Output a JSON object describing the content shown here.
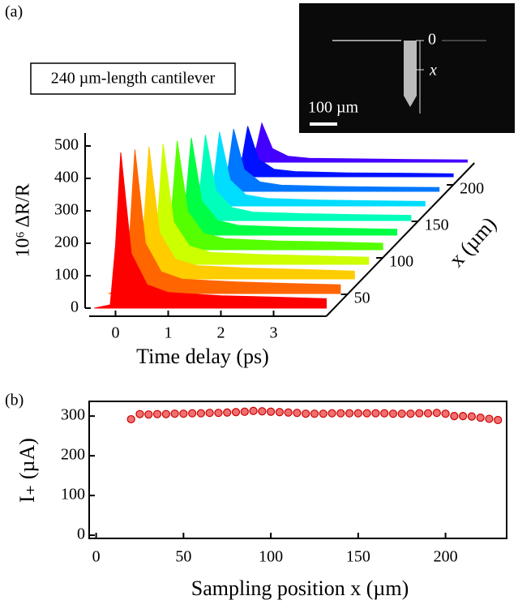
{
  "chart_data": [
    {
      "type": "waterfall",
      "panel_label": "(a)",
      "annotation": "240 µm-length cantilever",
      "inset_labels": [
        "0",
        "x",
        "100 µm"
      ],
      "xlabel": "Time delay (ps)",
      "ylabel": "10⁶ ΔR/R",
      "zlabel": "x (µm)",
      "x": [
        -0.4,
        -0.1,
        0,
        0.1,
        0.3,
        0.6,
        1,
        2,
        3,
        4
      ],
      "xlim": [
        -0.5,
        4
      ],
      "xticks": [
        0,
        1,
        2,
        3
      ],
      "ylim": [
        0,
        540
      ],
      "yticks": [
        0,
        100,
        200,
        300,
        400,
        500
      ],
      "z": [
        20,
        40,
        60,
        80,
        100,
        120,
        140,
        160,
        180,
        200,
        220
      ],
      "zlim": [
        20,
        230
      ],
      "zticks": [
        50,
        100,
        150,
        200
      ],
      "series": [
        {
          "color": "#ff0000",
          "values": [
            0,
            10,
            192,
            480,
            168,
            72,
            48,
            38,
            34,
            29
          ]
        },
        {
          "color": "#ff6600",
          "values": [
            0,
            9,
            178,
            444,
            155,
            67,
            44,
            36,
            31,
            27
          ]
        },
        {
          "color": "#ffcc00",
          "values": [
            0,
            8,
            163,
            408,
            143,
            61,
            41,
            33,
            29,
            24
          ]
        },
        {
          "color": "#ccff00",
          "values": [
            0,
            7,
            149,
            372,
            130,
            56,
            37,
            30,
            26,
            22
          ]
        },
        {
          "color": "#55ff00",
          "values": [
            0,
            7,
            134,
            336,
            118,
            50,
            34,
            27,
            24,
            20
          ]
        },
        {
          "color": "#00ff44",
          "values": [
            0,
            6,
            120,
            300,
            105,
            45,
            30,
            24,
            21,
            18
          ]
        },
        {
          "color": "#00ffbb",
          "values": [
            0,
            5,
            106,
            264,
            92,
            40,
            26,
            21,
            18,
            16
          ]
        },
        {
          "color": "#00ddff",
          "values": [
            0,
            5,
            91,
            228,
            80,
            34,
            23,
            18,
            16,
            14
          ]
        },
        {
          "color": "#0077ff",
          "values": [
            0,
            4,
            77,
            192,
            67,
            29,
            19,
            15,
            13,
            12
          ]
        },
        {
          "color": "#0011ff",
          "values": [
            0,
            3,
            62,
            156,
            55,
            23,
            16,
            12,
            11,
            9
          ]
        },
        {
          "color": "#4400ff",
          "values": [
            0,
            2,
            48,
            120,
            42,
            18,
            12,
            10,
            8,
            7
          ]
        }
      ]
    },
    {
      "type": "scatter",
      "panel_label": "(b)",
      "xlabel": "Sampling position x (µm)",
      "ylabel": "I₊ (µA)",
      "x": [
        20,
        25,
        30,
        35,
        40,
        45,
        50,
        55,
        60,
        65,
        70,
        75,
        80,
        85,
        90,
        95,
        100,
        105,
        110,
        115,
        120,
        125,
        130,
        135,
        140,
        145,
        150,
        155,
        160,
        165,
        170,
        175,
        180,
        185,
        190,
        195,
        200,
        205,
        210,
        215,
        220,
        225,
        230
      ],
      "values": [
        292,
        305,
        304,
        305,
        305,
        306,
        306,
        307,
        307,
        308,
        308,
        309,
        310,
        311,
        313,
        312,
        311,
        310,
        309,
        308,
        306,
        306,
        306,
        307,
        307,
        307,
        307,
        307,
        307,
        307,
        306,
        306,
        306,
        307,
        307,
        308,
        306,
        300,
        300,
        299,
        296,
        293,
        290
      ],
      "color": "#f07070",
      "edge_color": "#cc0000",
      "xlim": [
        -4,
        235
      ],
      "xticks": [
        0,
        50,
        100,
        150,
        200
      ],
      "ylim": [
        -8,
        337
      ],
      "yticks": [
        0,
        100,
        200,
        300
      ]
    }
  ]
}
